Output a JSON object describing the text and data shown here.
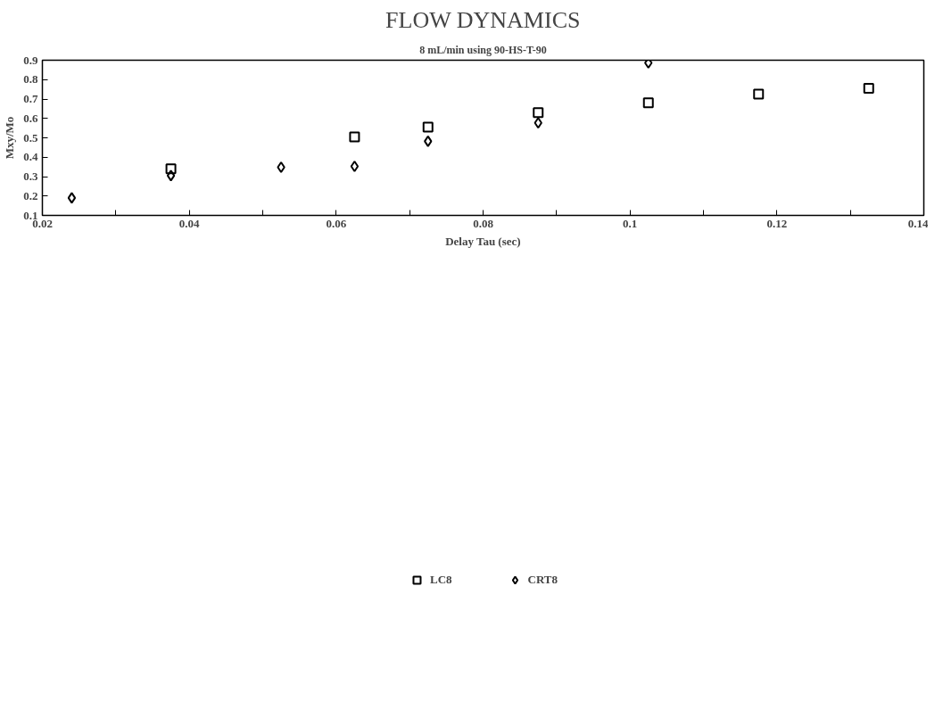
{
  "chart_data": {
    "type": "scatter",
    "title": "FLOW DYNAMICS",
    "subtitle": "8 mL/min using 90-HS-T-90",
    "xlabel": "Delay Tau (sec)",
    "ylabel": "Mxy/Mo",
    "xlim": [
      0.02,
      0.14
    ],
    "ylim": [
      0.1,
      0.9
    ],
    "xticks": [
      {
        "value": 0.02,
        "label": "0.02"
      },
      {
        "value": 0.03,
        "label": null
      },
      {
        "value": 0.04,
        "label": "0.04"
      },
      {
        "value": 0.05,
        "label": null
      },
      {
        "value": 0.06,
        "label": "0.06"
      },
      {
        "value": 0.07,
        "label": null
      },
      {
        "value": 0.08,
        "label": "0.08"
      },
      {
        "value": 0.09,
        "label": null
      },
      {
        "value": 0.1,
        "label": "0.1"
      },
      {
        "value": 0.11,
        "label": null
      },
      {
        "value": 0.12,
        "label": "0.12"
      },
      {
        "value": 0.13,
        "label": null
      },
      {
        "value": 0.14,
        "label": "0.14"
      }
    ],
    "yticks": [
      0.1,
      0.2,
      0.3,
      0.4,
      0.5,
      0.6,
      0.7,
      0.8,
      0.9
    ],
    "grid": false,
    "legend": "bottom",
    "series": [
      {
        "name": "LC8",
        "color": "#000000",
        "marker": "square",
        "x": [
          0.0375,
          0.0625,
          0.0725,
          0.0875,
          0.1025,
          0.1175,
          0.1325
        ],
        "values": [
          0.34,
          0.505,
          0.555,
          0.63,
          0.68,
          0.725,
          0.755
        ]
      },
      {
        "name": "CRT8",
        "color": "#000000",
        "marker": "diamond",
        "x": [
          0.024,
          0.0375,
          0.0525,
          0.0625,
          0.0725,
          0.0875,
          0.1025
        ],
        "values": [
          0.19,
          0.305,
          0.348,
          0.353,
          0.482,
          0.577,
          0.886
        ]
      }
    ]
  }
}
